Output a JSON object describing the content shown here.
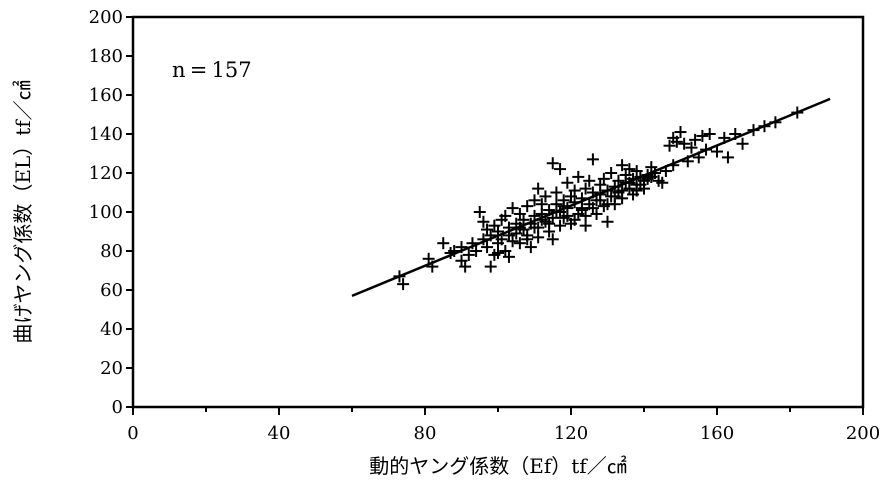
{
  "chart_data": {
    "type": "scatter",
    "annotation": "n = 157",
    "xlabel": "動的ヤング係数（Ef）tf／㎠",
    "ylabel": "曲げヤング係数（EL）tf／㎠",
    "xlim": [
      0,
      200
    ],
    "ylim": [
      0,
      200
    ],
    "x_ticks": [
      0,
      40,
      80,
      120,
      160,
      200
    ],
    "y_ticks": [
      0,
      20,
      40,
      60,
      80,
      100,
      120,
      140,
      160,
      180,
      200
    ],
    "grid": false,
    "regression_line": {
      "x": [
        60,
        191
      ],
      "y": [
        57,
        158
      ]
    },
    "series": [
      {
        "marker": "plus",
        "points": [
          [
            73,
            67
          ],
          [
            74,
            63
          ],
          [
            81,
            76
          ],
          [
            82,
            72
          ],
          [
            85,
            84
          ],
          [
            88,
            80
          ],
          [
            90,
            75
          ],
          [
            90,
            82
          ],
          [
            91,
            72
          ],
          [
            92,
            78
          ],
          [
            93,
            84
          ],
          [
            94,
            80
          ],
          [
            95,
            100
          ],
          [
            96,
            86
          ],
          [
            97,
            91
          ],
          [
            97,
            82
          ],
          [
            98,
            72
          ],
          [
            98,
            88
          ],
          [
            99,
            78
          ],
          [
            99,
            93
          ],
          [
            100,
            84
          ],
          [
            100,
            90
          ],
          [
            101,
            86
          ],
          [
            101,
            96
          ],
          [
            102,
            80
          ],
          [
            102,
            98
          ],
          [
            103,
            88
          ],
          [
            103,
            92
          ],
          [
            104,
            85
          ],
          [
            104,
            102
          ],
          [
            105,
            94
          ],
          [
            105,
            89
          ],
          [
            106,
            99
          ],
          [
            106,
            84
          ],
          [
            107,
            91
          ],
          [
            107,
            96
          ],
          [
            108,
            88
          ],
          [
            108,
            103
          ],
          [
            109,
            94
          ],
          [
            109,
            82
          ],
          [
            110,
            106
          ],
          [
            110,
            98
          ],
          [
            111,
            92
          ],
          [
            111,
            87
          ],
          [
            112,
            104
          ],
          [
            112,
            99
          ],
          [
            113,
            95
          ],
          [
            113,
            108
          ],
          [
            114,
            90
          ],
          [
            114,
            101
          ],
          [
            115,
            97
          ],
          [
            115,
            125
          ],
          [
            115,
            86
          ],
          [
            116,
            104
          ],
          [
            116,
            110
          ],
          [
            117,
            93
          ],
          [
            117,
            122
          ],
          [
            117,
            100
          ],
          [
            118,
            106
          ],
          [
            118,
            97
          ],
          [
            119,
            102
          ],
          [
            119,
            115
          ],
          [
            120,
            108
          ],
          [
            120,
            94
          ],
          [
            121,
            111
          ],
          [
            121,
            105
          ],
          [
            122,
            99
          ],
          [
            122,
            118
          ],
          [
            123,
            107
          ],
          [
            123,
            101
          ],
          [
            124,
            112
          ],
          [
            124,
            93
          ],
          [
            125,
            104
          ],
          [
            125,
            116
          ],
          [
            126,
            110
          ],
          [
            126,
            127
          ],
          [
            127,
            106
          ],
          [
            127,
            99
          ],
          [
            128,
            114
          ],
          [
            128,
            109
          ],
          [
            129,
            103
          ],
          [
            129,
            117
          ],
          [
            130,
            111
          ],
          [
            130,
            95
          ],
          [
            131,
            108
          ],
          [
            131,
            120
          ],
          [
            132,
            113
          ],
          [
            132,
            104
          ],
          [
            133,
            116
          ],
          [
            133,
            110
          ],
          [
            134,
            124
          ],
          [
            134,
            107
          ],
          [
            135,
            115
          ],
          [
            135,
            119
          ],
          [
            136,
            112
          ],
          [
            136,
            122
          ],
          [
            137,
            109
          ],
          [
            137,
            117
          ],
          [
            138,
            114
          ],
          [
            138,
            121
          ],
          [
            139,
            118
          ],
          [
            140,
            112
          ],
          [
            140,
            116
          ],
          [
            141,
            119
          ],
          [
            142,
            118
          ],
          [
            142,
            123
          ],
          [
            145,
            115
          ],
          [
            147,
            134
          ],
          [
            148,
            138
          ],
          [
            149,
            136
          ],
          [
            150,
            141
          ],
          [
            151,
            135
          ],
          [
            152,
            126
          ],
          [
            153,
            133
          ],
          [
            154,
            137
          ],
          [
            155,
            128
          ],
          [
            156,
            139
          ],
          [
            157,
            132
          ],
          [
            158,
            140
          ],
          [
            160,
            131
          ],
          [
            162,
            138
          ],
          [
            163,
            128
          ],
          [
            165,
            140
          ],
          [
            167,
            135
          ],
          [
            170,
            142
          ],
          [
            173,
            144
          ],
          [
            176,
            146
          ],
          [
            182,
            151
          ],
          [
            96,
            95
          ],
          [
            100,
            79
          ],
          [
            103,
            77
          ],
          [
            106,
            92
          ],
          [
            108,
            86
          ],
          [
            110,
            92
          ],
          [
            112,
            96
          ],
          [
            114,
            94
          ],
          [
            116,
            100
          ],
          [
            118,
            103
          ],
          [
            119,
            98
          ],
          [
            121,
            96
          ],
          [
            123,
            102
          ],
          [
            124,
            98
          ],
          [
            126,
            102
          ],
          [
            128,
            106
          ],
          [
            130,
            104
          ],
          [
            132,
            108
          ],
          [
            134,
            111
          ],
          [
            136,
            115
          ],
          [
            138,
            111
          ],
          [
            139,
            114
          ],
          [
            141,
            117
          ],
          [
            143,
            120
          ],
          [
            144,
            116
          ],
          [
            146,
            121
          ],
          [
            148,
            124
          ],
          [
            87,
            79
          ],
          [
            111,
            112
          ]
        ]
      }
    ]
  }
}
